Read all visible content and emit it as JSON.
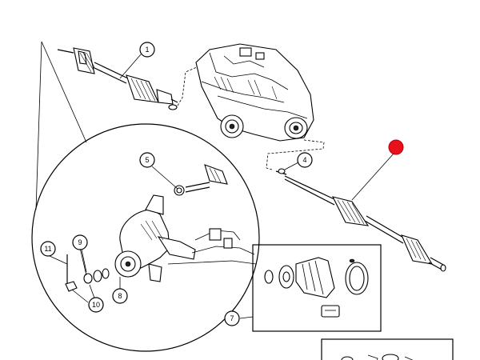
{
  "diagram": {
    "callouts": [
      {
        "id": "c1",
        "label": "1"
      },
      {
        "id": "c4",
        "label": "4"
      },
      {
        "id": "c5",
        "label": "5"
      },
      {
        "id": "c7",
        "label": "7"
      },
      {
        "id": "c8",
        "label": "8"
      },
      {
        "id": "c9",
        "label": "9"
      },
      {
        "id": "c10",
        "label": "10"
      },
      {
        "id": "c11",
        "label": "11"
      }
    ],
    "highlight_color": "#e8101a",
    "line_color": "#000000"
  }
}
